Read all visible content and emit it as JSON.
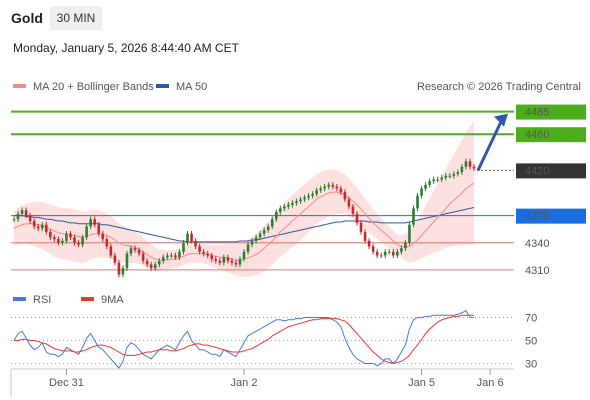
{
  "header": {
    "title": "Gold",
    "timeframe": "30 MIN",
    "datetime": "Monday, January 5, 2026 8:44:40 AM CET",
    "credit": "Research © 2026 Trading Central"
  },
  "colors": {
    "up": "#2e7d32",
    "down": "#c62828",
    "resistance": "#4caf1a",
    "support_line": "#e57373",
    "pivot": "#1a6fe0",
    "ma20": "#f48a8a",
    "ma50": "#2c5aa0",
    "band": "#fde0e0",
    "current": "#333333",
    "arrow": "#2b5aa8",
    "rsi": "#4a78d6",
    "rsi_ma": "#e53935"
  },
  "chart_data": [
    {
      "type": "candlestick",
      "name": "price",
      "legend": [
        {
          "label": "MA 20 + Bollinger Bands",
          "color": "#f48a8a"
        },
        {
          "label": "MA 50",
          "color": "#2c5aa0"
        }
      ],
      "ylim": [
        4290,
        4500
      ],
      "x_ticks": [
        {
          "label": "Dec 31",
          "index": 13
        },
        {
          "label": "Jan 2",
          "index": 57
        },
        {
          "label": "Jan 5",
          "index": 101
        },
        {
          "label": "Jan 6",
          "index": 118
        }
      ],
      "levels": [
        {
          "value": 4485,
          "label": "4485",
          "kind": "resistance"
        },
        {
          "value": 4460,
          "label": "4460",
          "kind": "resistance"
        },
        {
          "value": 4420,
          "label": "4420",
          "kind": "current"
        },
        {
          "value": 4370,
          "label": "4370",
          "kind": "pivot"
        },
        {
          "value": 4340,
          "label": "4340",
          "kind": "support"
        },
        {
          "value": 4310,
          "label": "4310",
          "kind": "support"
        }
      ],
      "closes": [
        4366,
        4372,
        4376,
        4370,
        4364,
        4358,
        4356,
        4360,
        4352,
        4346,
        4344,
        4340,
        4342,
        4350,
        4346,
        4340,
        4338,
        4346,
        4358,
        4366,
        4360,
        4350,
        4344,
        4336,
        4326,
        4318,
        4305,
        4312,
        4328,
        4334,
        4332,
        4328,
        4320,
        4316,
        4312,
        4316,
        4320,
        4324,
        4326,
        4326,
        4324,
        4330,
        4340,
        4350,
        4342,
        4336,
        4330,
        4328,
        4326,
        4322,
        4320,
        4318,
        4324,
        4320,
        4318,
        4316,
        4322,
        4330,
        4338,
        4342,
        4346,
        4350,
        4354,
        4358,
        4366,
        4374,
        4378,
        4380,
        4382,
        4384,
        4386,
        4388,
        4390,
        4392,
        4394,
        4398,
        4400,
        4402,
        4404,
        4402,
        4400,
        4396,
        4388,
        4380,
        4372,
        4362,
        4352,
        4342,
        4336,
        4330,
        4326,
        4326,
        4330,
        4330,
        4326,
        4330,
        4334,
        4340,
        4360,
        4378,
        4392,
        4400,
        4404,
        4408,
        4410,
        4410,
        4412,
        4414,
        4414,
        4416,
        4418,
        4424,
        4430,
        4424,
        4422
      ],
      "ma20": [
        4356,
        4358,
        4360,
        4361,
        4361,
        4361,
        4360,
        4359,
        4357,
        4355,
        4353,
        4351,
        4350,
        4350,
        4349,
        4348,
        4347,
        4346,
        4347,
        4349,
        4350,
        4350,
        4349,
        4348,
        4346,
        4343,
        4340,
        4338,
        4337,
        4336,
        4335,
        4333,
        4330,
        4327,
        4324,
        4322,
        4321,
        4321,
        4321,
        4322,
        4322,
        4323,
        4325,
        4327,
        4328,
        4328,
        4328,
        4328,
        4327,
        4326,
        4325,
        4324,
        4324,
        4323,
        4322,
        4321,
        4321,
        4322,
        4323,
        4325,
        4327,
        4330,
        4334,
        4338,
        4342,
        4347,
        4352,
        4356,
        4360,
        4364,
        4368,
        4372,
        4376,
        4380,
        4384,
        4388,
        4391,
        4393,
        4395,
        4396,
        4396,
        4395,
        4393,
        4390,
        4386,
        4382,
        4377,
        4372,
        4367,
        4362,
        4358,
        4354,
        4350,
        4346,
        4342,
        4338,
        4336,
        4335,
        4336,
        4339,
        4343,
        4348,
        4353,
        4358,
        4363,
        4368,
        4373,
        4378,
        4383,
        4387,
        4391,
        4395,
        4400,
        4403,
        4406
      ],
      "ma50": [
        4370,
        4370,
        4370,
        4369,
        4369,
        4368,
        4368,
        4367,
        4366,
        4366,
        4365,
        4364,
        4364,
        4363,
        4362,
        4362,
        4361,
        4361,
        4361,
        4361,
        4361,
        4361,
        4360,
        4360,
        4359,
        4358,
        4357,
        4356,
        4355,
        4354,
        4353,
        4352,
        4351,
        4350,
        4349,
        4348,
        4347,
        4346,
        4345,
        4344,
        4343,
        4342,
        4342,
        4341,
        4341,
        4341,
        4341,
        4341,
        4341,
        4341,
        4341,
        4341,
        4341,
        4341,
        4341,
        4341,
        4342,
        4342,
        4342,
        4343,
        4343,
        4344,
        4345,
        4346,
        4347,
        4348,
        4349,
        4350,
        4351,
        4352,
        4353,
        4354,
        4355,
        4356,
        4357,
        4358,
        4359,
        4360,
        4361,
        4362,
        4363,
        4363,
        4364,
        4364,
        4364,
        4364,
        4364,
        4364,
        4363,
        4363,
        4363,
        4362,
        4362,
        4362,
        4362,
        4362,
        4362,
        4362,
        4363,
        4364,
        4365,
        4366,
        4367,
        4368,
        4369,
        4370,
        4371,
        4372,
        4373,
        4374,
        4375,
        4376,
        4377,
        4378,
        4379
      ]
    },
    {
      "type": "line",
      "name": "rsi",
      "legend": [
        {
          "label": "RSI",
          "color": "#4a78d6"
        },
        {
          "label": "9MA",
          "color": "#e53935"
        }
      ],
      "ylim": [
        20,
        80
      ],
      "y_ticks": [
        30,
        50,
        70
      ],
      "rsi": [
        50,
        56,
        58,
        52,
        46,
        42,
        44,
        48,
        40,
        38,
        38,
        36,
        38,
        44,
        42,
        40,
        38,
        44,
        52,
        56,
        50,
        44,
        42,
        38,
        34,
        30,
        26,
        32,
        44,
        48,
        46,
        42,
        38,
        36,
        34,
        38,
        42,
        44,
        46,
        44,
        42,
        48,
        54,
        58,
        50,
        46,
        42,
        42,
        40,
        38,
        38,
        36,
        42,
        40,
        38,
        36,
        42,
        48,
        54,
        56,
        58,
        60,
        62,
        64,
        66,
        68,
        68,
        67,
        68,
        68,
        69,
        69,
        70,
        70,
        70,
        70,
        70,
        70,
        70,
        68,
        66,
        62,
        52,
        44,
        38,
        34,
        32,
        30,
        30,
        30,
        28,
        30,
        34,
        34,
        30,
        34,
        40,
        46,
        60,
        68,
        70,
        70,
        71,
        71,
        72,
        72,
        72,
        72,
        72,
        72,
        73,
        74,
        76,
        70,
        70
      ],
      "rsi_ma": [
        50,
        50,
        51,
        51,
        50,
        50,
        49,
        48,
        47,
        45,
        43,
        42,
        41,
        41,
        41,
        40,
        40,
        41,
        42,
        44,
        45,
        46,
        46,
        45,
        44,
        42,
        40,
        38,
        37,
        37,
        37,
        38,
        39,
        40,
        40,
        41,
        42,
        42,
        42,
        41,
        41,
        42,
        43,
        45,
        46,
        47,
        47,
        46,
        46,
        45,
        44,
        43,
        42,
        41,
        40,
        40,
        40,
        41,
        42,
        43,
        45,
        47,
        49,
        51,
        54,
        56,
        58,
        60,
        62,
        63,
        64,
        65,
        66,
        67,
        68,
        68,
        69,
        69,
        69,
        69,
        69,
        68,
        67,
        64,
        60,
        56,
        52,
        48,
        44,
        40,
        37,
        34,
        32,
        31,
        30,
        31,
        32,
        34,
        37,
        42,
        46,
        51,
        56,
        60,
        63,
        66,
        68,
        69,
        70,
        71,
        71,
        72,
        72,
        72,
        72
      ]
    }
  ]
}
